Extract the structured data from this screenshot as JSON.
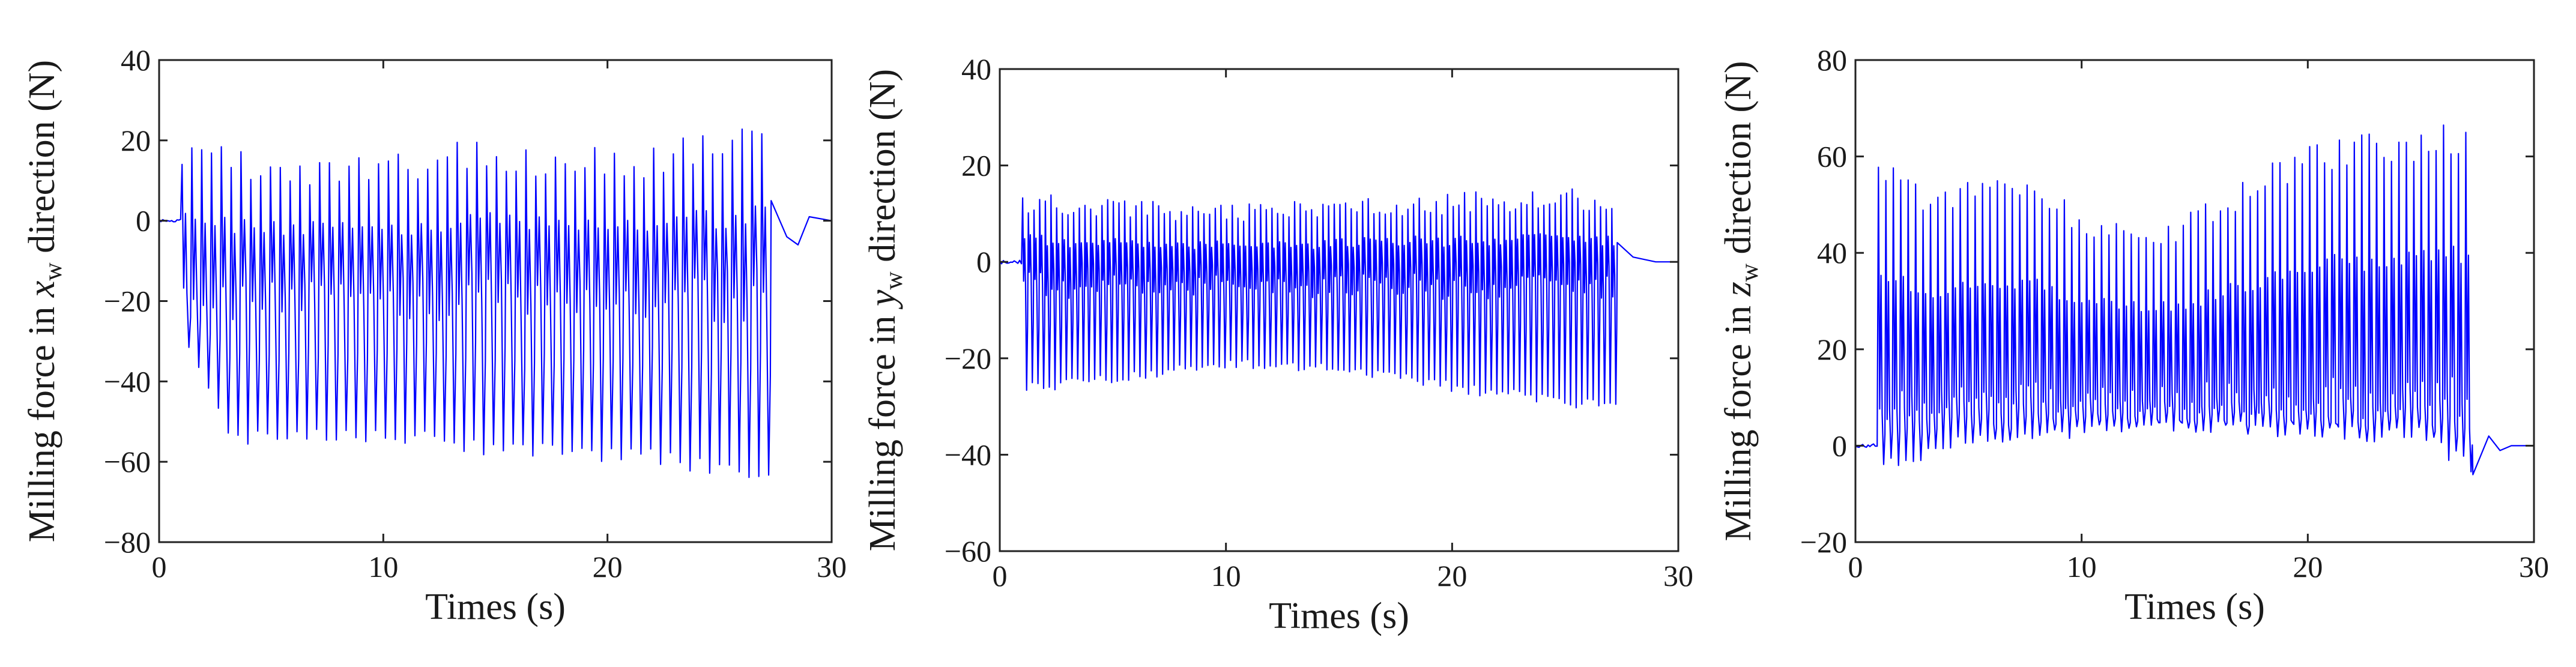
{
  "chart_data": [
    {
      "type": "line",
      "xlabel": "Times (s)",
      "ylabel": {
        "prefix": "Milling force in ",
        "var": "x",
        "sub": "w",
        "suffix": " direction (N)"
      },
      "xlim": [
        0,
        30
      ],
      "ylim": [
        -80,
        40
      ],
      "xticks": [
        "0",
        "10",
        "20",
        "30"
      ],
      "yticks": [
        "40",
        "20",
        "0",
        "−20",
        "−40",
        "−60",
        "−80"
      ],
      "grid": false,
      "color": "#0000ff",
      "signal": {
        "start": 1.0,
        "end": 27.3,
        "cycles": 60,
        "baseline": 0.0,
        "peaks": [
          [
            1.2,
            17
          ],
          [
            5,
            12
          ],
          [
            10,
            12
          ],
          [
            13,
            16
          ],
          [
            20,
            14
          ],
          [
            25,
            17
          ],
          [
            27,
            21
          ]
        ],
        "troughs": [
          [
            1.2,
            -33
          ],
          [
            3,
            -54
          ],
          [
            10,
            -53
          ],
          [
            15,
            -57
          ],
          [
            20,
            -58
          ],
          [
            25,
            -61
          ],
          [
            27,
            -63
          ]
        ],
        "inner": [
          -20,
          -18
        ],
        "tail": [
          [
            27.3,
            5
          ],
          [
            28,
            -4
          ],
          [
            28.5,
            -6
          ],
          [
            29,
            1
          ],
          [
            30,
            0
          ]
        ]
      }
    },
    {
      "type": "line",
      "xlabel": "Times (s)",
      "ylabel": {
        "prefix": "Milling force in ",
        "var": "y",
        "sub": "w",
        "suffix": " direction (N)"
      },
      "xlim": [
        0,
        30
      ],
      "ylim": [
        -60,
        40
      ],
      "xticks": [
        "0",
        "10",
        "20",
        "30"
      ],
      "yticks": [
        "40",
        "20",
        "0",
        "−20",
        "−40",
        "−60"
      ],
      "grid": false,
      "color": "#0000ff",
      "signal": {
        "start": 1.0,
        "end": 27.3,
        "cycles": 105,
        "baseline": 0.0,
        "peaks": [
          [
            1.2,
            12
          ],
          [
            5,
            11
          ],
          [
            10,
            10
          ],
          [
            15,
            11
          ],
          [
            20,
            12
          ],
          [
            25,
            13
          ],
          [
            27,
            12
          ]
        ],
        "troughs": [
          [
            1.2,
            -26
          ],
          [
            5,
            -24
          ],
          [
            10,
            -21
          ],
          [
            15,
            -22
          ],
          [
            20,
            -26
          ],
          [
            25,
            -29
          ],
          [
            27,
            -30
          ]
        ],
        "inner": [
          -5,
          -3
        ],
        "tail": [
          [
            27.3,
            4
          ],
          [
            28,
            1
          ],
          [
            29,
            0
          ],
          [
            30,
            0
          ]
        ]
      }
    },
    {
      "type": "line",
      "xlabel": "Times (s)",
      "ylabel": {
        "prefix": "Milling force in ",
        "var": "z",
        "sub": "w",
        "suffix": " direction (N)"
      },
      "xlim": [
        0,
        30
      ],
      "ylim": [
        -20,
        80
      ],
      "xticks": [
        "0",
        "10",
        "20",
        "30"
      ],
      "yticks": [
        "80",
        "60",
        "40",
        "20",
        "0",
        "−20"
      ],
      "grid": false,
      "color": "#0000ff",
      "signal": {
        "start": 1.0,
        "end": 27.3,
        "cycles": 80,
        "baseline": 0.0,
        "peaks": [
          [
            1.2,
            58
          ],
          [
            3,
            50
          ],
          [
            5,
            52
          ],
          [
            8,
            52
          ],
          [
            10,
            46
          ],
          [
            14,
            44
          ],
          [
            17,
            52
          ],
          [
            20,
            60
          ],
          [
            24,
            62
          ],
          [
            27,
            64
          ]
        ],
        "troughs": [
          [
            1.2,
            -4
          ],
          [
            5,
            2
          ],
          [
            10,
            3
          ],
          [
            15,
            4
          ],
          [
            20,
            3
          ],
          [
            25,
            2
          ],
          [
            27,
            -5
          ]
        ],
        "inner": [
          10,
          8
        ],
        "tail": [
          [
            27.3,
            -6
          ],
          [
            28,
            2
          ],
          [
            28.5,
            -1
          ],
          [
            29,
            0
          ],
          [
            30,
            0
          ]
        ]
      }
    }
  ]
}
